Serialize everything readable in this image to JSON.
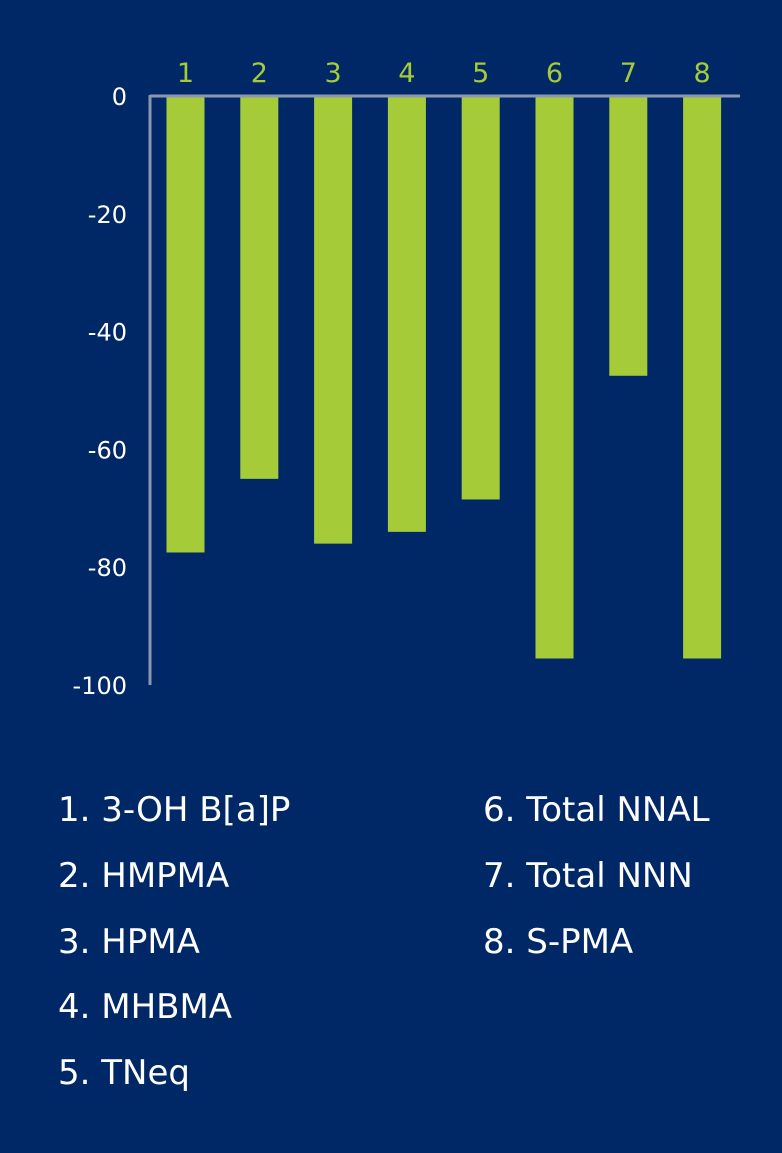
{
  "chart_data": {
    "type": "bar",
    "categories": [
      "1",
      "2",
      "3",
      "4",
      "5",
      "6",
      "7",
      "8"
    ],
    "values": [
      -77.5,
      -65,
      -76,
      -74,
      -68.5,
      -95.5,
      -47.5,
      -95.5
    ],
    "title": "",
    "xlabel": "",
    "ylabel": "",
    "ylim": [
      -100,
      0
    ],
    "yticks": [
      "0",
      "-20",
      "-40",
      "-60",
      "-80",
      "-100"
    ],
    "ytick_values": [
      0,
      -20,
      -40,
      -60,
      -80,
      -100
    ],
    "x_axis_position": "top",
    "grid": false,
    "colors": {
      "background": "#012866",
      "bar": "#a6cb38",
      "axis": "#8a97b0",
      "category_label": "#a6cb38",
      "tick_label": "#ffffff"
    }
  },
  "legend": {
    "left_column": [
      "1. 3-OH B[a]P",
      "2. HMPMA",
      "3. HPMA",
      "4. MHBMA",
      "5. TNeq"
    ],
    "right_column": [
      "6. Total NNAL",
      "7. Total NNN",
      "8. S-PMA"
    ]
  }
}
